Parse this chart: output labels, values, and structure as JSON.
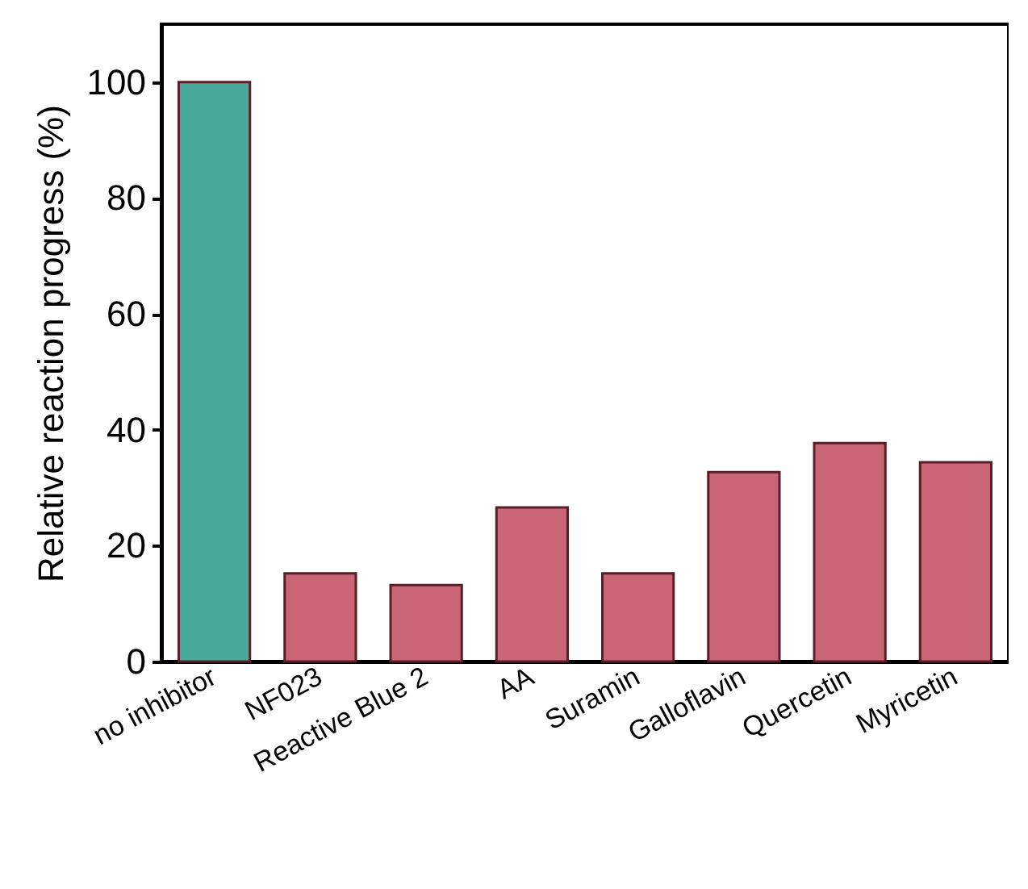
{
  "chart_data": {
    "type": "bar",
    "ylabel": "Relative reaction progress (%)",
    "categories": [
      "no inhibitor",
      "NF023",
      "Reactive Blue 2",
      "AA",
      "Suramin",
      "Galloflavin",
      "Quercetin",
      "Myricetin"
    ],
    "values": [
      100,
      15.2,
      13.2,
      26.6,
      15.2,
      32.7,
      37.7,
      34.4
    ],
    "colors": [
      "#48a999",
      "#c96574",
      "#c96574",
      "#c96574",
      "#c96574",
      "#c96574",
      "#c96574",
      "#c96574"
    ],
    "ylim": [
      0,
      110
    ],
    "yticks": [
      0,
      20,
      40,
      60,
      80,
      100
    ],
    "grid": false
  }
}
